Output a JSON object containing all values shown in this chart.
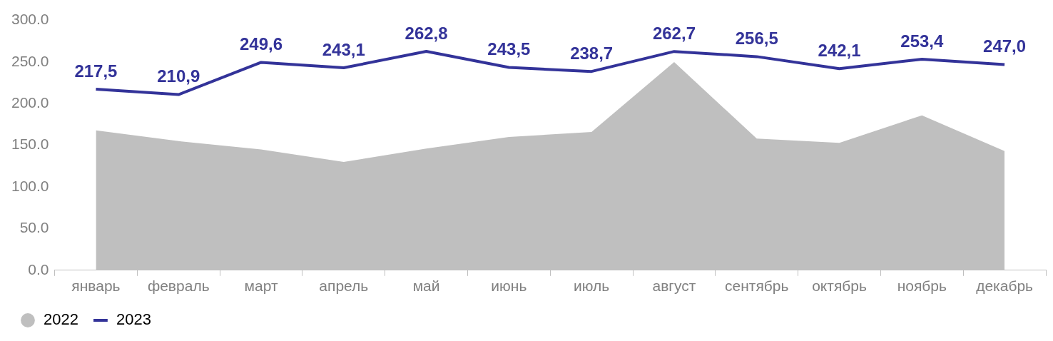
{
  "chart_data": {
    "type": "line",
    "categories": [
      "январь",
      "февраль",
      "март",
      "апрель",
      "май",
      "июнь",
      "июль",
      "август",
      "сентябрь",
      "октябрь",
      "ноябрь",
      "декабрь"
    ],
    "series": [
      {
        "name": "2022",
        "type": "area",
        "color": "#bfbfbf",
        "values": [
          168,
          155,
          145,
          130,
          146,
          160,
          166,
          250,
          158,
          153,
          186,
          143
        ]
      },
      {
        "name": "2023",
        "color": "#333399",
        "values": [
          217.5,
          210.9,
          249.6,
          243.1,
          262.8,
          243.5,
          238.7,
          262.7,
          256.5,
          242.1,
          253.4,
          247.0
        ],
        "value_labels": [
          "217,5",
          "210,9",
          "249,6",
          "243,1",
          "262,8",
          "243,5",
          "238,7",
          "262,7",
          "256,5",
          "242,1",
          "253,4",
          "247,0"
        ]
      }
    ],
    "ylim": [
      0,
      300
    ],
    "yticks": [
      {
        "value": 0,
        "label": "0.0"
      },
      {
        "value": 50,
        "label": "50.0"
      },
      {
        "value": 100,
        "label": "100.0"
      },
      {
        "value": 150,
        "label": "150.0"
      },
      {
        "value": 200,
        "label": "200.0"
      },
      {
        "value": 250,
        "label": "250.0"
      },
      {
        "value": 300,
        "label": "300.0"
      }
    ],
    "grid": false,
    "legend": "bottom left",
    "marker": "none"
  }
}
